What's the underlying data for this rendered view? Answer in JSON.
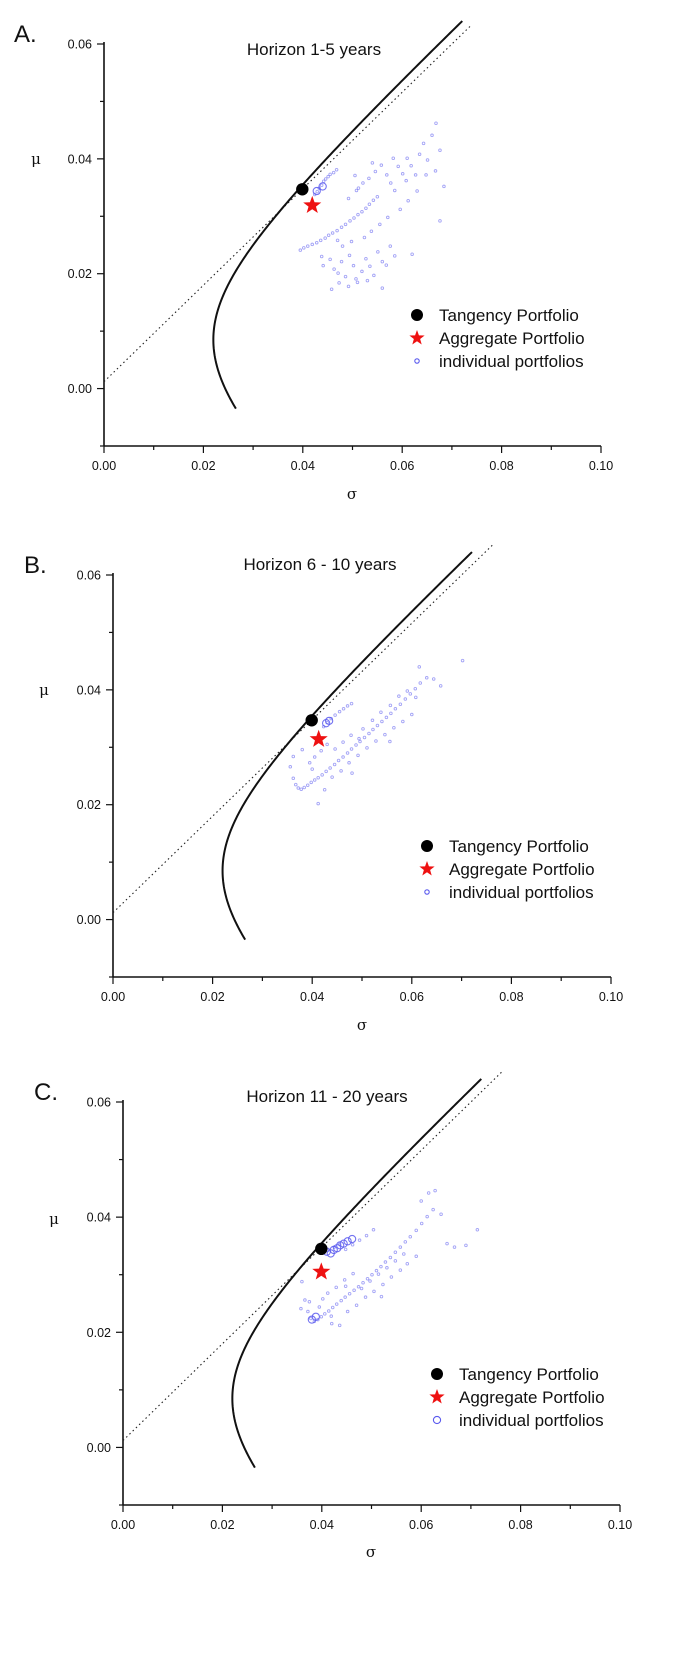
{
  "chart_data": [
    {
      "type": "scatter",
      "panel_label": "A.",
      "title": "Horizon 1-5 years",
      "xlabel": "σ",
      "ylabel": "μ",
      "xlim": [
        0.0,
        0.1
      ],
      "ylim": [
        -0.01,
        0.06
      ],
      "xticks": [
        "0.00",
        "0.02",
        "0.04",
        "0.06",
        "0.08",
        "0.10"
      ],
      "yticks": [
        "0.00",
        "0.02",
        "0.04",
        "0.06"
      ],
      "legend_position": "right",
      "legend": [
        "Tangency Portfolio",
        "Aggregate Portfolio",
        "individual portfolios"
      ],
      "colors": {
        "tangency": "#000000",
        "aggregate": "#ee1111",
        "individual": "#5a5aee"
      },
      "frontier": {
        "min_sigma": 0.022,
        "min_mu": 0.0085,
        "curvature": 1.53,
        "mu_range": [
          -0.0035,
          0.064
        ]
      },
      "cml": {
        "intercept": 0.0012,
        "slope": 0.84,
        "x_max": 0.074
      },
      "tangency": {
        "x": 0.0399,
        "y": 0.0347
      },
      "aggregate": {
        "x": 0.0419,
        "y": 0.0319
      },
      "individual_portfolios": [
        [
          0.0424,
          0.0338
        ],
        [
          0.0429,
          0.0343
        ],
        [
          0.0433,
          0.0349
        ],
        [
          0.0438,
          0.0354
        ],
        [
          0.0442,
          0.0361
        ],
        [
          0.0446,
          0.0365
        ],
        [
          0.0451,
          0.0369
        ],
        [
          0.0455,
          0.0373
        ],
        [
          0.0462,
          0.0376
        ],
        [
          0.0468,
          0.0381
        ],
        [
          0.0395,
          0.0241
        ],
        [
          0.0402,
          0.0245
        ],
        [
          0.041,
          0.0248
        ],
        [
          0.0419,
          0.0251
        ],
        [
          0.0428,
          0.0254
        ],
        [
          0.0436,
          0.0258
        ],
        [
          0.0445,
          0.0262
        ],
        [
          0.0452,
          0.0267
        ],
        [
          0.046,
          0.0271
        ],
        [
          0.0469,
          0.0275
        ],
        [
          0.0478,
          0.0281
        ],
        [
          0.0486,
          0.0286
        ],
        [
          0.0495,
          0.0292
        ],
        [
          0.0503,
          0.0297
        ],
        [
          0.0511,
          0.0303
        ],
        [
          0.0519,
          0.0308
        ],
        [
          0.0527,
          0.0314
        ],
        [
          0.0534,
          0.0321
        ],
        [
          0.0542,
          0.0328
        ],
        [
          0.055,
          0.0334
        ],
        [
          0.0441,
          0.0214
        ],
        [
          0.0455,
          0.0225
        ],
        [
          0.0463,
          0.0208
        ],
        [
          0.0471,
          0.0201
        ],
        [
          0.0478,
          0.0221
        ],
        [
          0.0486,
          0.0195
        ],
        [
          0.0494,
          0.0232
        ],
        [
          0.0502,
          0.0214
        ],
        [
          0.051,
          0.0185
        ],
        [
          0.0519,
          0.0204
        ],
        [
          0.0527,
          0.0226
        ],
        [
          0.0535,
          0.0213
        ],
        [
          0.0543,
          0.0197
        ],
        [
          0.0551,
          0.0238
        ],
        [
          0.056,
          0.0221
        ],
        [
          0.0568,
          0.0215
        ],
        [
          0.0576,
          0.0248
        ],
        [
          0.0585,
          0.0231
        ],
        [
          0.048,
          0.0248
        ],
        [
          0.0498,
          0.0256
        ],
        [
          0.0458,
          0.0173
        ],
        [
          0.0473,
          0.0184
        ],
        [
          0.0492,
          0.0178
        ],
        [
          0.0507,
          0.0191
        ],
        [
          0.053,
          0.0188
        ],
        [
          0.0492,
          0.0331
        ],
        [
          0.0508,
          0.0345
        ],
        [
          0.0521,
          0.0358
        ],
        [
          0.0533,
          0.0366
        ],
        [
          0.0546,
          0.0378
        ],
        [
          0.0558,
          0.0389
        ],
        [
          0.0569,
          0.0372
        ],
        [
          0.0577,
          0.0358
        ],
        [
          0.0585,
          0.0345
        ],
        [
          0.0592,
          0.0387
        ],
        [
          0.0601,
          0.0374
        ],
        [
          0.061,
          0.0401
        ],
        [
          0.0618,
          0.0388
        ],
        [
          0.0627,
          0.0372
        ],
        [
          0.0635,
          0.0408
        ],
        [
          0.0643,
          0.0427
        ],
        [
          0.0651,
          0.0398
        ],
        [
          0.066,
          0.0441
        ],
        [
          0.0668,
          0.0462
        ],
        [
          0.0676,
          0.0415
        ],
        [
          0.0667,
          0.0379
        ],
        [
          0.0684,
          0.0352
        ],
        [
          0.063,
          0.0344
        ],
        [
          0.0612,
          0.0327
        ],
        [
          0.0596,
          0.0312
        ],
        [
          0.0571,
          0.0298
        ],
        [
          0.0555,
          0.0286
        ],
        [
          0.0538,
          0.0274
        ],
        [
          0.0524,
          0.0263
        ],
        [
          0.0512,
          0.0349
        ],
        [
          0.054,
          0.0393
        ],
        [
          0.0505,
          0.0371
        ],
        [
          0.0582,
          0.0401
        ],
        [
          0.0608,
          0.0362
        ],
        [
          0.0648,
          0.0372
        ],
        [
          0.0676,
          0.0292
        ],
        [
          0.062,
          0.0234
        ],
        [
          0.056,
          0.0175
        ],
        [
          0.047,
          0.0258
        ],
        [
          0.0438,
          0.023
        ]
      ],
      "individual_large": [
        [
          0.044,
          0.0352
        ],
        [
          0.0428,
          0.0344
        ]
      ]
    },
    {
      "type": "scatter",
      "panel_label": "B.",
      "title": "Horizon 6 - 10 years",
      "xlabel": "σ",
      "ylabel": "μ",
      "xlim": [
        0.0,
        0.1
      ],
      "ylim": [
        -0.01,
        0.06
      ],
      "xticks": [
        "0.00",
        "0.02",
        "0.04",
        "0.06",
        "0.08",
        "0.10"
      ],
      "yticks": [
        "0.00",
        "0.02",
        "0.04",
        "0.06"
      ],
      "legend_position": "right",
      "legend": [
        "Tangency Portfolio",
        "Aggregate Portfolio",
        "individual portfolios"
      ],
      "colors": {
        "tangency": "#000000",
        "aggregate": "#ee1111",
        "individual": "#5a5aee"
      },
      "frontier": {
        "min_sigma": 0.022,
        "min_mu": 0.0085,
        "curvature": 1.53,
        "mu_range": [
          -0.0035,
          0.064
        ]
      },
      "cml": {
        "intercept": 0.0012,
        "slope": 0.84,
        "x_max": 0.0765
      },
      "tangency": {
        "x": 0.0399,
        "y": 0.0347
      },
      "aggregate": {
        "x": 0.0413,
        "y": 0.0314
      },
      "individual_portfolios": [
        [
          0.0423,
          0.0336
        ],
        [
          0.043,
          0.0343
        ],
        [
          0.0438,
          0.035
        ],
        [
          0.0446,
          0.0356
        ],
        [
          0.0455,
          0.0362
        ],
        [
          0.0463,
          0.0367
        ],
        [
          0.0471,
          0.0372
        ],
        [
          0.0479,
          0.0376
        ],
        [
          0.0356,
          0.0266
        ],
        [
          0.0362,
          0.0246
        ],
        [
          0.0367,
          0.0235
        ],
        [
          0.0372,
          0.0229
        ],
        [
          0.0378,
          0.0227
        ],
        [
          0.0384,
          0.023
        ],
        [
          0.0391,
          0.0234
        ],
        [
          0.0398,
          0.0239
        ],
        [
          0.0405,
          0.0243
        ],
        [
          0.0412,
          0.0247
        ],
        [
          0.042,
          0.0252
        ],
        [
          0.0428,
          0.0258
        ],
        [
          0.0436,
          0.0264
        ],
        [
          0.0445,
          0.027
        ],
        [
          0.0453,
          0.0277
        ],
        [
          0.0462,
          0.0283
        ],
        [
          0.0471,
          0.029
        ],
        [
          0.0479,
          0.0297
        ],
        [
          0.0488,
          0.0304
        ],
        [
          0.0496,
          0.031
        ],
        [
          0.0505,
          0.0317
        ],
        [
          0.0514,
          0.0324
        ],
        [
          0.0522,
          0.0331
        ],
        [
          0.0531,
          0.0338
        ],
        [
          0.054,
          0.0345
        ],
        [
          0.0549,
          0.0352
        ],
        [
          0.0558,
          0.0359
        ],
        [
          0.0567,
          0.0367
        ],
        [
          0.0577,
          0.0375
        ],
        [
          0.0587,
          0.0384
        ],
        [
          0.0597,
          0.0393
        ],
        [
          0.0607,
          0.0402
        ],
        [
          0.0617,
          0.0412
        ],
        [
          0.063,
          0.0421
        ],
        [
          0.0644,
          0.0419
        ],
        [
          0.0658,
          0.0407
        ],
        [
          0.0615,
          0.044
        ],
        [
          0.0702,
          0.0451
        ],
        [
          0.0412,
          0.0202
        ],
        [
          0.0425,
          0.0226
        ],
        [
          0.044,
          0.0248
        ],
        [
          0.0458,
          0.0259
        ],
        [
          0.0474,
          0.0273
        ],
        [
          0.0492,
          0.0286
        ],
        [
          0.051,
          0.0299
        ],
        [
          0.0528,
          0.0311
        ],
        [
          0.0546,
          0.0322
        ],
        [
          0.0564,
          0.0334
        ],
        [
          0.0582,
          0.0345
        ],
        [
          0.06,
          0.0357
        ],
        [
          0.0502,
          0.0332
        ],
        [
          0.0521,
          0.0347
        ],
        [
          0.0538,
          0.0361
        ],
        [
          0.0557,
          0.0373
        ],
        [
          0.0574,
          0.0389
        ],
        [
          0.0591,
          0.0398
        ],
        [
          0.0608,
          0.0387
        ],
        [
          0.0395,
          0.0273
        ],
        [
          0.0405,
          0.0283
        ],
        [
          0.0418,
          0.0294
        ],
        [
          0.043,
          0.0305
        ],
        [
          0.0446,
          0.0297
        ],
        [
          0.0462,
          0.0309
        ],
        [
          0.0478,
          0.0321
        ],
        [
          0.0494,
          0.0315
        ],
        [
          0.0362,
          0.0284
        ],
        [
          0.038,
          0.0296
        ],
        [
          0.04,
          0.0262
        ],
        [
          0.048,
          0.0255
        ],
        [
          0.0556,
          0.031
        ]
      ],
      "individual_large": [
        [
          0.0434,
          0.0346
        ],
        [
          0.0428,
          0.0342
        ]
      ]
    },
    {
      "type": "scatter",
      "panel_label": "C.",
      "title": "Horizon 11 - 20 years",
      "xlabel": "σ",
      "ylabel": "μ",
      "xlim": [
        0.0,
        0.1
      ],
      "ylim": [
        -0.01,
        0.06
      ],
      "xticks": [
        "0.00",
        "0.02",
        "0.04",
        "0.06",
        "0.08",
        "0.10"
      ],
      "yticks": [
        "0.00",
        "0.02",
        "0.04",
        "0.06"
      ],
      "legend_position": "right",
      "legend": [
        "Tangency Portfolio",
        "Aggregate Portfolio",
        "individual portfolios"
      ],
      "colors": {
        "tangency": "#000000",
        "aggregate": "#ee1111",
        "individual": "#5a5aee"
      },
      "frontier": {
        "min_sigma": 0.022,
        "min_mu": 0.0085,
        "curvature": 1.53,
        "mu_range": [
          -0.0035,
          0.064
        ]
      },
      "cml": {
        "intercept": 0.0012,
        "slope": 0.84,
        "x_max": 0.0765
      },
      "tangency": {
        "x": 0.0399,
        "y": 0.0345
      },
      "aggregate": {
        "x": 0.0399,
        "y": 0.0305
      },
      "individual_portfolios": [
        [
          0.036,
          0.0288
        ],
        [
          0.0366,
          0.0256
        ],
        [
          0.0372,
          0.0236
        ],
        [
          0.0378,
          0.0224
        ],
        [
          0.0385,
          0.0219
        ],
        [
          0.0392,
          0.0222
        ],
        [
          0.0399,
          0.0227
        ],
        [
          0.0406,
          0.0232
        ],
        [
          0.0414,
          0.0237
        ],
        [
          0.0422,
          0.0243
        ],
        [
          0.043,
          0.0249
        ],
        [
          0.0439,
          0.0255
        ],
        [
          0.0447,
          0.0261
        ],
        [
          0.0456,
          0.0267
        ],
        [
          0.0465,
          0.0273
        ],
        [
          0.0474,
          0.0279
        ],
        [
          0.0483,
          0.0286
        ],
        [
          0.0492,
          0.0293
        ],
        [
          0.0501,
          0.03
        ],
        [
          0.051,
          0.0307
        ],
        [
          0.0519,
          0.0314
        ],
        [
          0.0528,
          0.0322
        ],
        [
          0.0538,
          0.033
        ],
        [
          0.0548,
          0.0339
        ],
        [
          0.0558,
          0.0348
        ],
        [
          0.0568,
          0.0357
        ],
        [
          0.0578,
          0.0366
        ],
        [
          0.059,
          0.0377
        ],
        [
          0.0601,
          0.0389
        ],
        [
          0.0612,
          0.0401
        ],
        [
          0.0624,
          0.0413
        ],
        [
          0.06,
          0.0428
        ],
        [
          0.0615,
          0.0442
        ],
        [
          0.0628,
          0.0446
        ],
        [
          0.064,
          0.0405
        ],
        [
          0.0652,
          0.0354
        ],
        [
          0.0667,
          0.0348
        ],
        [
          0.069,
          0.0351
        ],
        [
          0.0713,
          0.0378
        ],
        [
          0.0402,
          0.0258
        ],
        [
          0.0419,
          0.0228
        ],
        [
          0.0436,
          0.0212
        ],
        [
          0.0452,
          0.0236
        ],
        [
          0.047,
          0.0247
        ],
        [
          0.0488,
          0.0261
        ],
        [
          0.0505,
          0.0271
        ],
        [
          0.0523,
          0.0283
        ],
        [
          0.054,
          0.0296
        ],
        [
          0.0558,
          0.0308
        ],
        [
          0.0572,
          0.0319
        ],
        [
          0.0412,
          0.0268
        ],
        [
          0.0429,
          0.0278
        ],
        [
          0.0446,
          0.0291
        ],
        [
          0.0463,
          0.0302
        ],
        [
          0.048,
          0.0276
        ],
        [
          0.0497,
          0.0289
        ],
        [
          0.0514,
          0.0301
        ],
        [
          0.0531,
          0.0312
        ],
        [
          0.0548,
          0.0324
        ],
        [
          0.0565,
          0.0336
        ],
        [
          0.0448,
          0.0344
        ],
        [
          0.0462,
          0.0352
        ],
        [
          0.0476,
          0.036
        ],
        [
          0.049,
          0.0368
        ],
        [
          0.0504,
          0.0378
        ],
        [
          0.0412,
          0.0342
        ],
        [
          0.0425,
          0.0348
        ],
        [
          0.0436,
          0.0353
        ],
        [
          0.0358,
          0.0241
        ],
        [
          0.0375,
          0.0253
        ],
        [
          0.0395,
          0.0244
        ],
        [
          0.042,
          0.0215
        ],
        [
          0.0448,
          0.028
        ],
        [
          0.052,
          0.0262
        ],
        [
          0.059,
          0.0332
        ]
      ],
      "individual_large": [
        [
          0.041,
          0.034
        ],
        [
          0.0418,
          0.0337
        ],
        [
          0.0424,
          0.0343
        ],
        [
          0.0431,
          0.0346
        ],
        [
          0.0437,
          0.0351
        ],
        [
          0.0444,
          0.0354
        ],
        [
          0.0452,
          0.0358
        ],
        [
          0.0461,
          0.0362
        ],
        [
          0.0388,
          0.0227
        ],
        [
          0.038,
          0.0222
        ]
      ]
    }
  ]
}
